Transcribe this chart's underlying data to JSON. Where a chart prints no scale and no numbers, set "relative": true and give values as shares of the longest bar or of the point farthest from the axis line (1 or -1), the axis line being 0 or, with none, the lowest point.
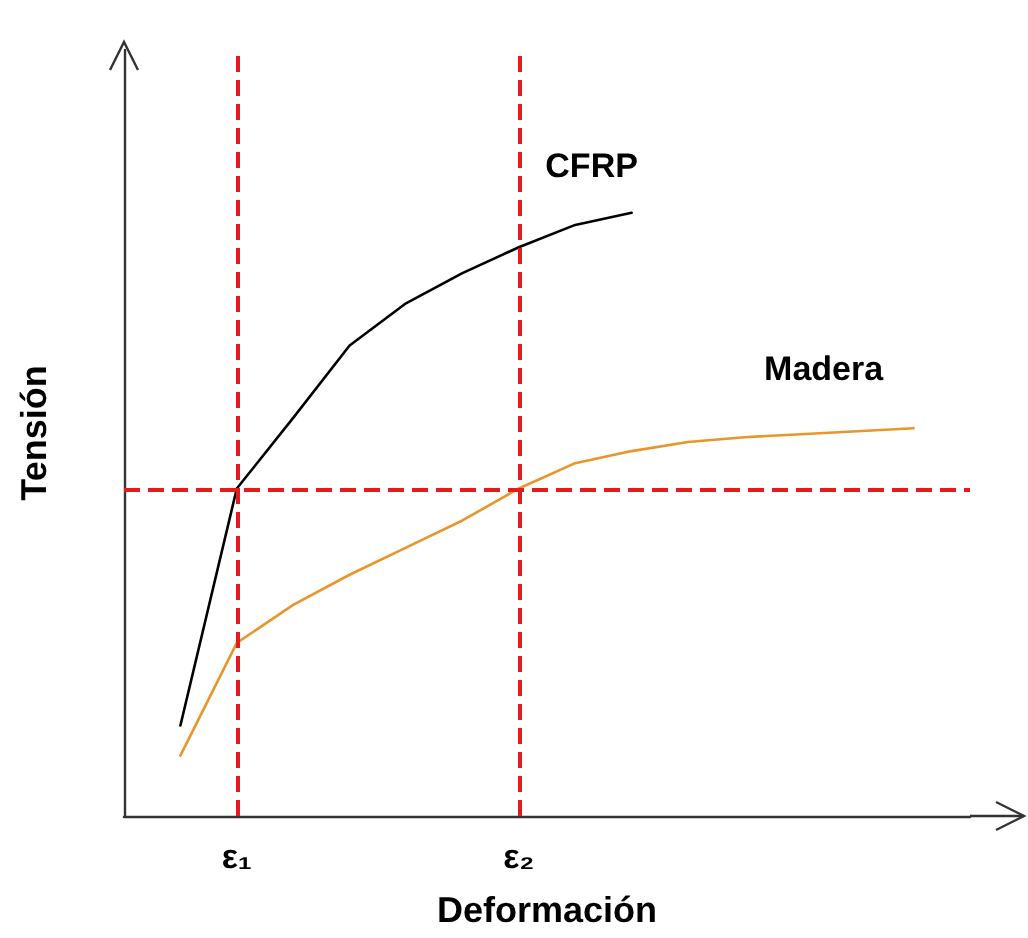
{
  "chart_data": {
    "type": "line",
    "relative": true,
    "xlabel": "Deformación",
    "ylabel": "Tensión",
    "categories": [
      null,
      null,
      "ε₁",
      null,
      null,
      null,
      null,
      "ε₂",
      null,
      null,
      null,
      null,
      null,
      null,
      null,
      null
    ],
    "tick_labels": "x",
    "grid": false,
    "legend": false,
    "marker": "none",
    "line_style": "solid",
    "series": [
      {
        "name": "CFRP",
        "color": "#000000",
        "values": [
          null,
          0.15,
          0.543,
          0.66,
          0.78,
          0.85,
          0.9,
          0.943,
          0.98,
          1,
          null,
          null,
          null,
          null,
          null,
          null
        ]
      },
      {
        "name": "Madera",
        "color": "#e8952a",
        "values": [
          null,
          0.1,
          0.287,
          0.35,
          0.4,
          0.445,
          0.49,
          0.543,
          0.585,
          0.605,
          0.62,
          0.628,
          0.633,
          0.638,
          0.643,
          null
        ]
      }
    ],
    "ref_lines": [
      {
        "axis": "x",
        "value": "ε₁",
        "color": "#e41a1c",
        "line_style": "dashed"
      },
      {
        "axis": "x",
        "value": "ε₂",
        "color": "#e41a1c",
        "line_style": "dashed"
      },
      {
        "axis": "y",
        "value": 0.543,
        "color": "#e41a1c",
        "line_style": "dashed"
      }
    ]
  }
}
